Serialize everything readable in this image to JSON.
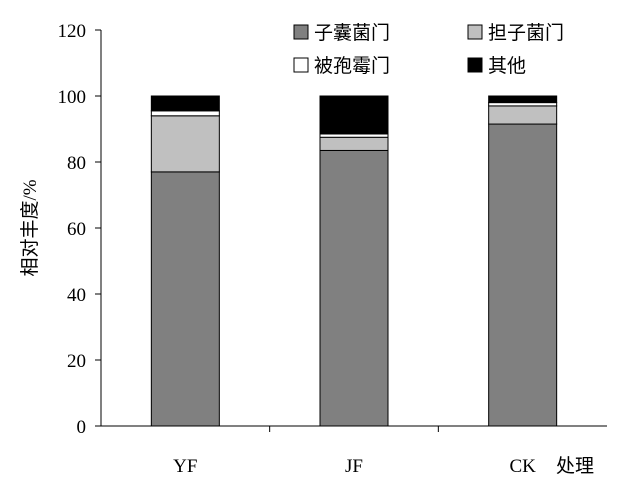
{
  "chart_data": {
    "type": "bar",
    "stacked": true,
    "categories": [
      "YF",
      "JF",
      "CK"
    ],
    "series": [
      {
        "name": "子囊菌门",
        "color": "#808080",
        "values": [
          77,
          83.5,
          91.5
        ]
      },
      {
        "name": "担子菌门",
        "color": "#c0c0c0",
        "values": [
          17,
          4,
          5.5
        ]
      },
      {
        "name": "被孢霉门",
        "color": "#ffffff",
        "values": [
          1.5,
          1,
          1
        ]
      },
      {
        "name": "其他",
        "color": "#000000",
        "values": [
          4.5,
          11.5,
          2
        ]
      }
    ],
    "title": "",
    "xlabel": "处理",
    "ylabel": "相对丰度/%",
    "ylim": [
      0,
      120
    ],
    "yticks": [
      0,
      20,
      40,
      60,
      80,
      100,
      120
    ],
    "grid": false,
    "legend_position": "top-right"
  }
}
